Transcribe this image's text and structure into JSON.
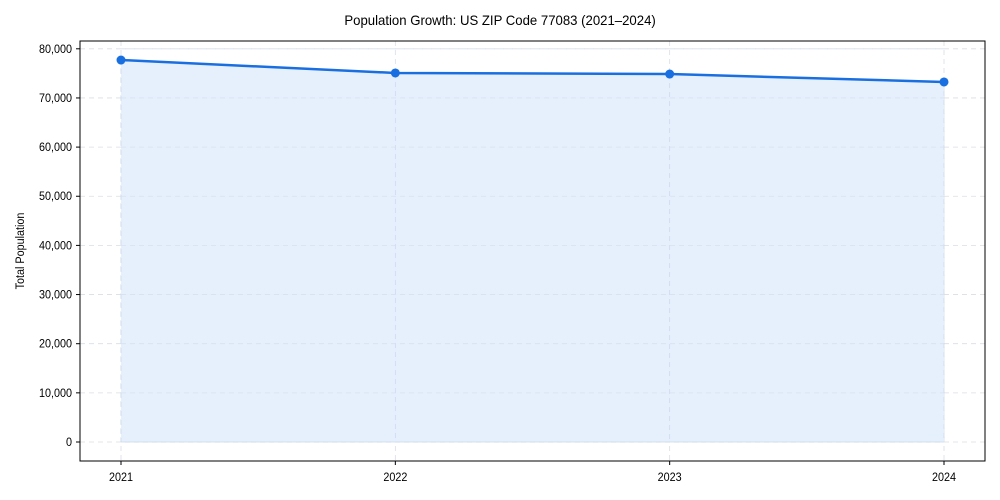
{
  "chart_data": {
    "type": "area",
    "title": "Population Growth: US ZIP Code 77083 (2021–2024)",
    "xlabel": "",
    "ylabel": "Total Population",
    "categories": [
      "2021",
      "2022",
      "2023",
      "2024"
    ],
    "series": [
      {
        "name": "Total Population",
        "values": [
          77720,
          75080,
          74870,
          73250
        ]
      }
    ],
    "ylim": [
      -3800,
      81600
    ],
    "yticks": [
      0,
      10000,
      20000,
      30000,
      40000,
      50000,
      60000,
      70000,
      80000
    ],
    "ytick_labels": [
      "0",
      "10,000",
      "20,000",
      "30,000",
      "40,000",
      "50,000",
      "60,000",
      "70,000",
      "80,000"
    ],
    "grid": true,
    "legend": "none",
    "colors": {
      "line": "#1a6fe0",
      "fill": "#e3eefd",
      "grid": "#d9dde3",
      "axis": "#000000"
    }
  }
}
